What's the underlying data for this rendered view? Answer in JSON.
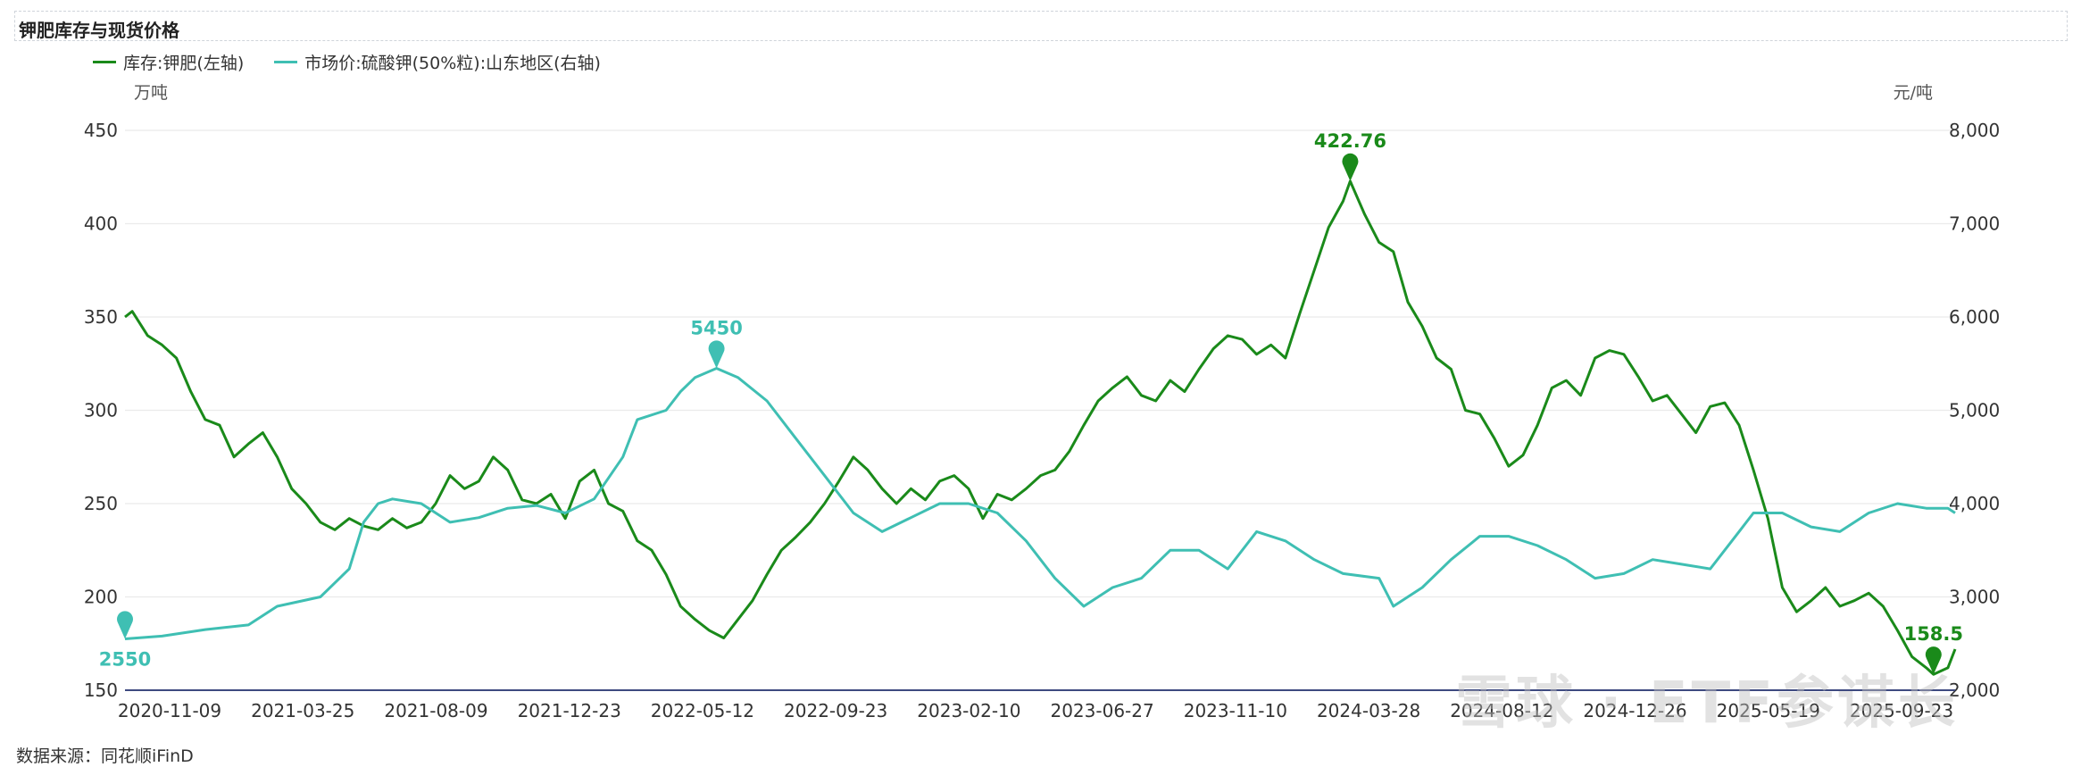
{
  "chart_data": {
    "type": "line",
    "title": "钾肥库存与现货价格",
    "source": "数据来源：同花顺iFinD",
    "left_unit": "万吨",
    "right_unit": "元/吨",
    "left_axis": {
      "min": 150,
      "max": 450,
      "ticks": [
        150,
        200,
        250,
        300,
        350,
        400,
        450
      ]
    },
    "right_axis": {
      "min": 2000,
      "max": 8000,
      "ticks": [
        2000,
        3000,
        4000,
        5000,
        6000,
        7000,
        8000
      ],
      "tick_labels": [
        "2,000",
        "3,000",
        "4,000",
        "5,000",
        "6,000",
        "7,000",
        "8,000"
      ]
    },
    "x_ticks": [
      "2020-11-09",
      "2021-03-25",
      "2021-08-09",
      "2021-12-23",
      "2022-05-12",
      "2022-09-23",
      "2023-02-10",
      "2023-06-27",
      "2023-11-10",
      "2024-03-28",
      "2024-08-12",
      "2024-12-26",
      "2025-05-19",
      "2025-09-23"
    ],
    "x_range": [
      "2020-11-09",
      "2025-09-23"
    ],
    "series": [
      {
        "name": "库存:钾肥(左轴)",
        "axis": "left",
        "color": "#1a8a1a",
        "points": [
          [
            "2020-11-09",
            350
          ],
          [
            "2020-11-16",
            353
          ],
          [
            "2020-12-01",
            340
          ],
          [
            "2020-12-15",
            335
          ],
          [
            "2020-12-29",
            328
          ],
          [
            "2021-01-12",
            310
          ],
          [
            "2021-01-26",
            295
          ],
          [
            "2021-02-09",
            292
          ],
          [
            "2021-02-23",
            275
          ],
          [
            "2021-03-09",
            282
          ],
          [
            "2021-03-23",
            288
          ],
          [
            "2021-04-06",
            275
          ],
          [
            "2021-04-20",
            258
          ],
          [
            "2021-05-04",
            250
          ],
          [
            "2021-05-18",
            240
          ],
          [
            "2021-06-01",
            236
          ],
          [
            "2021-06-15",
            242
          ],
          [
            "2021-06-29",
            238
          ],
          [
            "2021-07-13",
            236
          ],
          [
            "2021-07-27",
            242
          ],
          [
            "2021-08-10",
            237
          ],
          [
            "2021-08-24",
            240
          ],
          [
            "2021-09-07",
            250
          ],
          [
            "2021-09-21",
            265
          ],
          [
            "2021-10-05",
            258
          ],
          [
            "2021-10-19",
            262
          ],
          [
            "2021-11-02",
            275
          ],
          [
            "2021-11-16",
            268
          ],
          [
            "2021-11-30",
            252
          ],
          [
            "2021-12-14",
            250
          ],
          [
            "2021-12-28",
            255
          ],
          [
            "2022-01-11",
            242
          ],
          [
            "2022-01-25",
            262
          ],
          [
            "2022-02-08",
            268
          ],
          [
            "2022-02-22",
            250
          ],
          [
            "2022-03-08",
            246
          ],
          [
            "2022-03-22",
            230
          ],
          [
            "2022-04-05",
            225
          ],
          [
            "2022-04-19",
            212
          ],
          [
            "2022-05-03",
            195
          ],
          [
            "2022-05-17",
            188
          ],
          [
            "2022-05-31",
            182
          ],
          [
            "2022-06-14",
            178
          ],
          [
            "2022-06-28",
            188
          ],
          [
            "2022-07-12",
            198
          ],
          [
            "2022-07-26",
            212
          ],
          [
            "2022-08-09",
            225
          ],
          [
            "2022-08-23",
            232
          ],
          [
            "2022-09-06",
            240
          ],
          [
            "2022-09-20",
            250
          ],
          [
            "2022-10-04",
            262
          ],
          [
            "2022-10-18",
            275
          ],
          [
            "2022-11-01",
            268
          ],
          [
            "2022-11-15",
            258
          ],
          [
            "2022-11-29",
            250
          ],
          [
            "2022-12-13",
            258
          ],
          [
            "2022-12-27",
            252
          ],
          [
            "2023-01-10",
            262
          ],
          [
            "2023-01-24",
            265
          ],
          [
            "2023-02-07",
            258
          ],
          [
            "2023-02-21",
            242
          ],
          [
            "2023-03-07",
            255
          ],
          [
            "2023-03-21",
            252
          ],
          [
            "2023-04-04",
            258
          ],
          [
            "2023-04-18",
            265
          ],
          [
            "2023-05-02",
            268
          ],
          [
            "2023-05-16",
            278
          ],
          [
            "2023-05-30",
            292
          ],
          [
            "2023-06-13",
            305
          ],
          [
            "2023-06-27",
            312
          ],
          [
            "2023-07-11",
            318
          ],
          [
            "2023-07-25",
            308
          ],
          [
            "2023-08-08",
            305
          ],
          [
            "2023-08-22",
            316
          ],
          [
            "2023-09-05",
            310
          ],
          [
            "2023-09-19",
            322
          ],
          [
            "2023-10-03",
            333
          ],
          [
            "2023-10-17",
            340
          ],
          [
            "2023-10-31",
            338
          ],
          [
            "2023-11-14",
            330
          ],
          [
            "2023-11-28",
            335
          ],
          [
            "2023-12-12",
            328
          ],
          [
            "2023-12-26",
            352
          ],
          [
            "2024-01-09",
            375
          ],
          [
            "2024-01-23",
            398
          ],
          [
            "2024-02-06",
            412
          ],
          [
            "2024-02-13",
            422.76
          ],
          [
            "2024-02-27",
            405
          ],
          [
            "2024-03-12",
            390
          ],
          [
            "2024-03-26",
            385
          ],
          [
            "2024-04-09",
            358
          ],
          [
            "2024-04-23",
            345
          ],
          [
            "2024-05-07",
            328
          ],
          [
            "2024-05-21",
            322
          ],
          [
            "2024-06-04",
            300
          ],
          [
            "2024-06-18",
            298
          ],
          [
            "2024-07-02",
            285
          ],
          [
            "2024-07-16",
            270
          ],
          [
            "2024-07-30",
            276
          ],
          [
            "2024-08-13",
            292
          ],
          [
            "2024-08-27",
            312
          ],
          [
            "2024-09-10",
            316
          ],
          [
            "2024-09-24",
            308
          ],
          [
            "2024-10-08",
            328
          ],
          [
            "2024-10-22",
            332
          ],
          [
            "2024-11-05",
            330
          ],
          [
            "2024-11-19",
            318
          ],
          [
            "2024-12-03",
            305
          ],
          [
            "2024-12-17",
            308
          ],
          [
            "2024-12-31",
            298
          ],
          [
            "2025-01-14",
            288
          ],
          [
            "2025-01-28",
            302
          ],
          [
            "2025-02-11",
            304
          ],
          [
            "2025-02-25",
            292
          ],
          [
            "2025-03-11",
            268
          ],
          [
            "2025-03-25",
            242
          ],
          [
            "2025-04-08",
            205
          ],
          [
            "2025-04-22",
            192
          ],
          [
            "2025-05-06",
            198
          ],
          [
            "2025-05-20",
            205
          ],
          [
            "2025-06-03",
            195
          ],
          [
            "2025-06-17",
            198
          ],
          [
            "2025-07-01",
            202
          ],
          [
            "2025-07-15",
            195
          ],
          [
            "2025-07-29",
            182
          ],
          [
            "2025-08-12",
            168
          ],
          [
            "2025-08-26",
            162
          ],
          [
            "2025-09-02",
            158.5
          ],
          [
            "2025-09-16",
            162
          ],
          [
            "2025-09-23",
            172
          ]
        ]
      },
      {
        "name": "市场价:硫酸钾(50%粒):山东地区(右轴)",
        "axis": "right",
        "color": "#3fbfb3",
        "points": [
          [
            "2020-11-09",
            2550
          ],
          [
            "2020-12-15",
            2580
          ],
          [
            "2021-01-26",
            2650
          ],
          [
            "2021-03-09",
            2700
          ],
          [
            "2021-04-06",
            2900
          ],
          [
            "2021-05-18",
            3000
          ],
          [
            "2021-06-15",
            3300
          ],
          [
            "2021-06-29",
            3800
          ],
          [
            "2021-07-13",
            4000
          ],
          [
            "2021-07-27",
            4050
          ],
          [
            "2021-08-24",
            4000
          ],
          [
            "2021-09-21",
            3800
          ],
          [
            "2021-10-19",
            3850
          ],
          [
            "2021-11-16",
            3950
          ],
          [
            "2021-12-14",
            3980
          ],
          [
            "2022-01-11",
            3900
          ],
          [
            "2022-02-08",
            4050
          ],
          [
            "2022-03-08",
            4500
          ],
          [
            "2022-03-22",
            4900
          ],
          [
            "2022-04-19",
            5000
          ],
          [
            "2022-05-03",
            5200
          ],
          [
            "2022-05-17",
            5350
          ],
          [
            "2022-06-07",
            5450
          ],
          [
            "2022-06-28",
            5350
          ],
          [
            "2022-07-26",
            5100
          ],
          [
            "2022-08-23",
            4700
          ],
          [
            "2022-09-20",
            4300
          ],
          [
            "2022-10-18",
            3900
          ],
          [
            "2022-11-15",
            3700
          ],
          [
            "2022-12-13",
            3850
          ],
          [
            "2023-01-10",
            4000
          ],
          [
            "2023-02-07",
            4000
          ],
          [
            "2023-03-07",
            3900
          ],
          [
            "2023-04-04",
            3600
          ],
          [
            "2023-05-02",
            3200
          ],
          [
            "2023-05-30",
            2900
          ],
          [
            "2023-06-27",
            3100
          ],
          [
            "2023-07-25",
            3200
          ],
          [
            "2023-08-22",
            3500
          ],
          [
            "2023-09-19",
            3500
          ],
          [
            "2023-10-17",
            3300
          ],
          [
            "2023-11-14",
            3700
          ],
          [
            "2023-12-12",
            3600
          ],
          [
            "2024-01-09",
            3400
          ],
          [
            "2024-02-06",
            3250
          ],
          [
            "2024-03-12",
            3200
          ],
          [
            "2024-03-26",
            2900
          ],
          [
            "2024-04-23",
            3100
          ],
          [
            "2024-05-21",
            3400
          ],
          [
            "2024-06-18",
            3650
          ],
          [
            "2024-07-16",
            3650
          ],
          [
            "2024-08-13",
            3550
          ],
          [
            "2024-09-10",
            3400
          ],
          [
            "2024-10-08",
            3200
          ],
          [
            "2024-11-05",
            3250
          ],
          [
            "2024-12-03",
            3400
          ],
          [
            "2024-12-31",
            3350
          ],
          [
            "2025-01-28",
            3300
          ],
          [
            "2025-02-25",
            3700
          ],
          [
            "2025-03-11",
            3900
          ],
          [
            "2025-04-08",
            3900
          ],
          [
            "2025-05-06",
            3750
          ],
          [
            "2025-06-03",
            3700
          ],
          [
            "2025-07-01",
            3900
          ],
          [
            "2025-07-29",
            4000
          ],
          [
            "2025-08-26",
            3950
          ],
          [
            "2025-09-16",
            3950
          ],
          [
            "2025-09-23",
            3900
          ]
        ]
      }
    ],
    "annotations": [
      {
        "series": 0,
        "date": "2024-02-13",
        "value": 422.76,
        "label": "422.76"
      },
      {
        "series": 0,
        "date": "2025-09-02",
        "value": 158.5,
        "label": "158.5"
      },
      {
        "series": 1,
        "date": "2020-11-09",
        "value": 2550,
        "label": "2550"
      },
      {
        "series": 1,
        "date": "2022-06-07",
        "value": 5450,
        "label": "5450"
      }
    ],
    "grid": true,
    "legend_position": "top-left"
  },
  "watermark": "雪球 · ETF参谋长"
}
